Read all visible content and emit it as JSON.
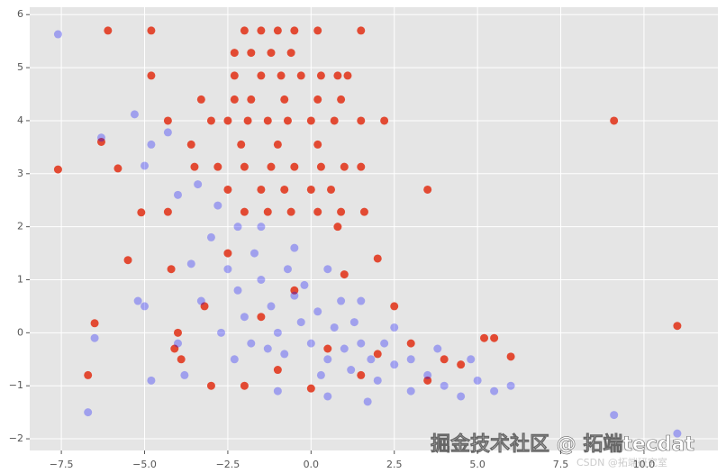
{
  "chart_data": {
    "type": "scatter",
    "xlim": [
      -8.45,
      12.22
    ],
    "ylim": [
      -2.22,
      6.14
    ],
    "xticks": [
      {
        "value": -7.5,
        "label": "−7.5"
      },
      {
        "value": -5,
        "label": "−5.0"
      },
      {
        "value": -2.5,
        "label": "−2.5"
      },
      {
        "value": 0,
        "label": "0.0"
      },
      2.5,
      {
        "value": 5,
        "label": "5.0"
      },
      7.5,
      {
        "value": 10,
        "label": "10.0"
      }
    ],
    "yticks": [
      {
        "value": -2,
        "label": "−2"
      },
      {
        "value": -1,
        "label": "−1"
      },
      0,
      1,
      2,
      3,
      4,
      5,
      6
    ],
    "grid": true,
    "annotations": [
      "掘金技术社区 @ 拓端tecdat",
      "CSDN @拓端研究室"
    ],
    "series": [
      {
        "color": "#e24a33",
        "alpha": 1,
        "x": [
          -6.1,
          -4.8,
          -2,
          -1.5,
          -1,
          -0.5,
          0.2,
          1.5,
          -2.3,
          -1.8,
          -1.2,
          -0.6,
          -4.8,
          -2.3,
          -1.5,
          -0.9,
          -0.3,
          0.3,
          0.8,
          1.1,
          -3.3,
          -2.3,
          -1.8,
          -0.8,
          0.2,
          0.9,
          -4.3,
          -3,
          -2.5,
          -1.9,
          -1.3,
          -0.7,
          0,
          0.7,
          1.5,
          2.2,
          9.1,
          -3.6,
          -2.1,
          -1,
          0.2,
          -3.5,
          -2.8,
          -2,
          -1.2,
          -0.5,
          0.3,
          1,
          1.5,
          -2.5,
          -1.5,
          -0.8,
          0,
          0.6,
          3.5,
          -4.3,
          -2,
          -1.3,
          -0.6,
          0.2,
          0.9,
          1.6,
          -7.6,
          -6.3,
          -5.8,
          -5.5,
          -5.1,
          -6.7,
          -6.5,
          -4.2,
          -4,
          -3.9,
          -4.1,
          -3.2,
          -2.5,
          -2,
          -1.5,
          -1,
          -0.5,
          0,
          0.5,
          1,
          1.5,
          2,
          2.5,
          3,
          3.5,
          4,
          4.5,
          5.2,
          5.5,
          6,
          11,
          -3,
          2,
          0.8
        ],
        "values": [
          5.7,
          5.7,
          5.7,
          5.7,
          5.7,
          5.7,
          5.7,
          5.7,
          5.28,
          5.28,
          5.28,
          5.28,
          4.85,
          4.85,
          4.85,
          4.85,
          4.85,
          4.85,
          4.85,
          4.85,
          4.4,
          4.4,
          4.4,
          4.4,
          4.4,
          4.4,
          4,
          4,
          4,
          4,
          4,
          4,
          4,
          4,
          4,
          4,
          4,
          3.55,
          3.55,
          3.55,
          3.55,
          3.13,
          3.13,
          3.13,
          3.13,
          3.13,
          3.13,
          3.13,
          3.13,
          2.7,
          2.7,
          2.7,
          2.7,
          2.7,
          2.7,
          2.28,
          2.28,
          2.28,
          2.28,
          2.28,
          2.28,
          2.28,
          3.08,
          3.6,
          3.1,
          1.37,
          2.27,
          -0.8,
          0.18,
          1.2,
          0,
          -0.5,
          -0.3,
          0.5,
          1.5,
          -1,
          0.3,
          -0.7,
          0.8,
          -1.05,
          -0.3,
          1.1,
          -0.8,
          -0.4,
          0.5,
          -0.2,
          -0.9,
          -0.5,
          -0.6,
          -0.1,
          -0.1,
          -0.45,
          0.13,
          -1,
          1.4,
          2
        ]
      },
      {
        "color": "#0000ff",
        "alpha": 0.3,
        "x": [
          -7.6,
          -6.3,
          -5.3,
          -4.8,
          -5,
          -4.3,
          -3.4,
          -4,
          -5.2,
          -5,
          -6.5,
          -6.7,
          -4.8,
          -4,
          -3.3,
          -3,
          -2.5,
          -2.2,
          -2,
          -1.8,
          -1.5,
          -1.2,
          -1,
          -0.8,
          -0.5,
          -0.3,
          0,
          0.2,
          0.5,
          0.7,
          1,
          1.2,
          1.5,
          1.8,
          2,
          2.5,
          3,
          3.5,
          4,
          4.5,
          5,
          5.5,
          6,
          9.1,
          11,
          -2.8,
          -1.5,
          -0.5,
          0.5,
          1.5,
          2.5,
          3.8,
          -3.8,
          -2.3,
          -1,
          0.5,
          1.7,
          3,
          -0.2,
          0.3,
          -1.3,
          -2.7,
          0.9,
          -0.7,
          2.2,
          1.3,
          -1.7,
          -2.2,
          4.8,
          -3.6
        ],
        "values": [
          5.63,
          3.68,
          4.12,
          3.55,
          3.15,
          3.78,
          2.8,
          2.6,
          0.6,
          0.5,
          -0.1,
          -1.5,
          -0.9,
          -0.2,
          0.6,
          1.8,
          1.2,
          0.8,
          0.3,
          -0.2,
          1,
          0.5,
          0,
          -0.4,
          0.7,
          0.2,
          -0.2,
          0.4,
          -0.5,
          0.1,
          -0.3,
          -0.7,
          -0.2,
          -0.5,
          -0.9,
          -0.6,
          -0.5,
          -0.8,
          -1,
          -1.2,
          -0.9,
          -1.1,
          -1,
          -1.55,
          -1.9,
          2.4,
          2,
          1.6,
          1.2,
          0.6,
          0.1,
          -0.3,
          -0.8,
          -0.5,
          -1.1,
          -1.2,
          -1.3,
          -1.1,
          0.9,
          -0.8,
          -0.3,
          0,
          0.6,
          1.2,
          -0.2,
          0.2,
          1.5,
          2,
          -0.5,
          1.3
        ]
      }
    ]
  }
}
